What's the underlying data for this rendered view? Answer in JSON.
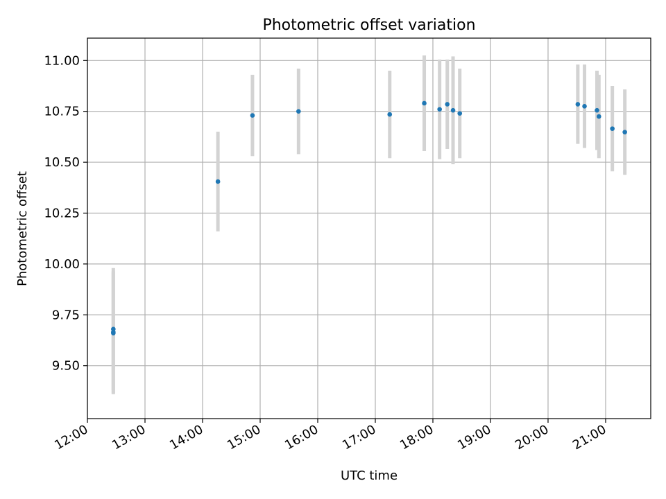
{
  "chart_data": {
    "type": "scatter",
    "title": "Photometric offset variation",
    "xlabel": "UTC time",
    "ylabel": "Photometric offset",
    "x_axis_type": "time",
    "xlim": [
      "12:00",
      "21:47"
    ],
    "ylim": [
      9.24,
      11.11
    ],
    "x_ticks": [
      "12:00",
      "13:00",
      "14:00",
      "15:00",
      "16:00",
      "17:00",
      "18:00",
      "19:00",
      "20:00",
      "21:00"
    ],
    "y_ticks": [
      9.5,
      9.75,
      10.0,
      10.25,
      10.5,
      10.75,
      11.0
    ],
    "y_tick_labels": [
      "9.50",
      "9.75",
      "10.00",
      "10.25",
      "10.50",
      "10.75",
      "11.00"
    ],
    "grid": true,
    "legend": false,
    "colors": {
      "points": "#1f77b4",
      "errorbars": "#d3d3d3",
      "grid": "#b0b0b0"
    },
    "points": [
      {
        "x": "12:27",
        "y": 9.68,
        "yerr": 0.3
      },
      {
        "x": "12:27",
        "y": 9.665,
        "yerr": 0.3
      },
      {
        "x": "12:27",
        "y": 9.66,
        "yerr": 0.3
      },
      {
        "x": "14:16",
        "y": 10.405,
        "yerr": 0.245
      },
      {
        "x": "14:52",
        "y": 10.73,
        "yerr": 0.2
      },
      {
        "x": "15:40",
        "y": 10.75,
        "yerr": 0.21
      },
      {
        "x": "17:15",
        "y": 10.735,
        "yerr": 0.215
      },
      {
        "x": "17:51",
        "y": 10.79,
        "yerr": 0.235
      },
      {
        "x": "18:07",
        "y": 10.76,
        "yerr": 0.245
      },
      {
        "x": "18:15",
        "y": 10.785,
        "yerr": 0.22
      },
      {
        "x": "18:21",
        "y": 10.755,
        "yerr": 0.265
      },
      {
        "x": "18:28",
        "y": 10.74,
        "yerr": 0.22
      },
      {
        "x": "20:31",
        "y": 10.785,
        "yerr": 0.195
      },
      {
        "x": "20:38",
        "y": 10.775,
        "yerr": 0.205
      },
      {
        "x": "20:51",
        "y": 10.755,
        "yerr": 0.195
      },
      {
        "x": "20:53",
        "y": 10.725,
        "yerr": 0.205
      },
      {
        "x": "21:07",
        "y": 10.665,
        "yerr": 0.21
      },
      {
        "x": "21:20",
        "y": 10.648,
        "yerr": 0.21
      }
    ]
  }
}
